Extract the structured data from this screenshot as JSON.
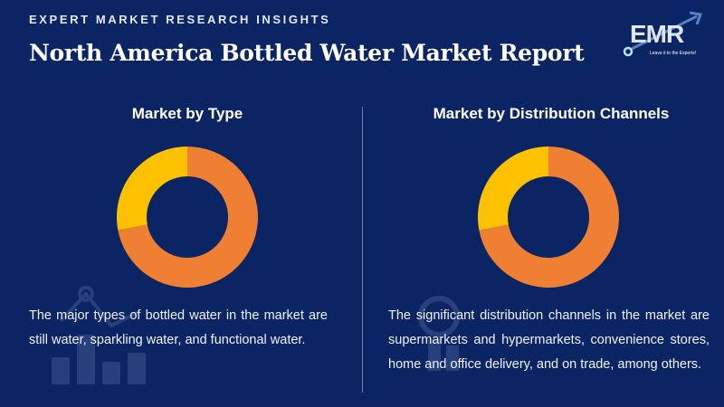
{
  "header": {
    "kicker": "EXPERT MARKET RESEARCH INSIGHTS",
    "title": "North America Bottled Water Market Report"
  },
  "logo": {
    "text": "EMR",
    "tagline": "Leave it to the Experts!"
  },
  "colors": {
    "background": "#0b2463",
    "orange": "#ef7f32",
    "yellow": "#fdc100"
  },
  "chart_data": [
    {
      "type": "pie",
      "title": "Market by Type",
      "slices": [
        {
          "name": "segment-1",
          "value": 72,
          "color": "#ef7f32"
        },
        {
          "name": "segment-2",
          "value": 28,
          "color": "#fdc100"
        }
      ],
      "description": "The major types of bottled water in the market are still water, sparkling water, and functional water."
    },
    {
      "type": "pie",
      "title": "Market by Distribution Channels",
      "slices": [
        {
          "name": "segment-1",
          "value": 72,
          "color": "#ef7f32"
        },
        {
          "name": "segment-2",
          "value": 28,
          "color": "#fdc100"
        }
      ],
      "description": "The significant distribution channels in the market are supermarkets and hypermarkets, convenience stores, home and office delivery, and on trade, among others."
    }
  ]
}
